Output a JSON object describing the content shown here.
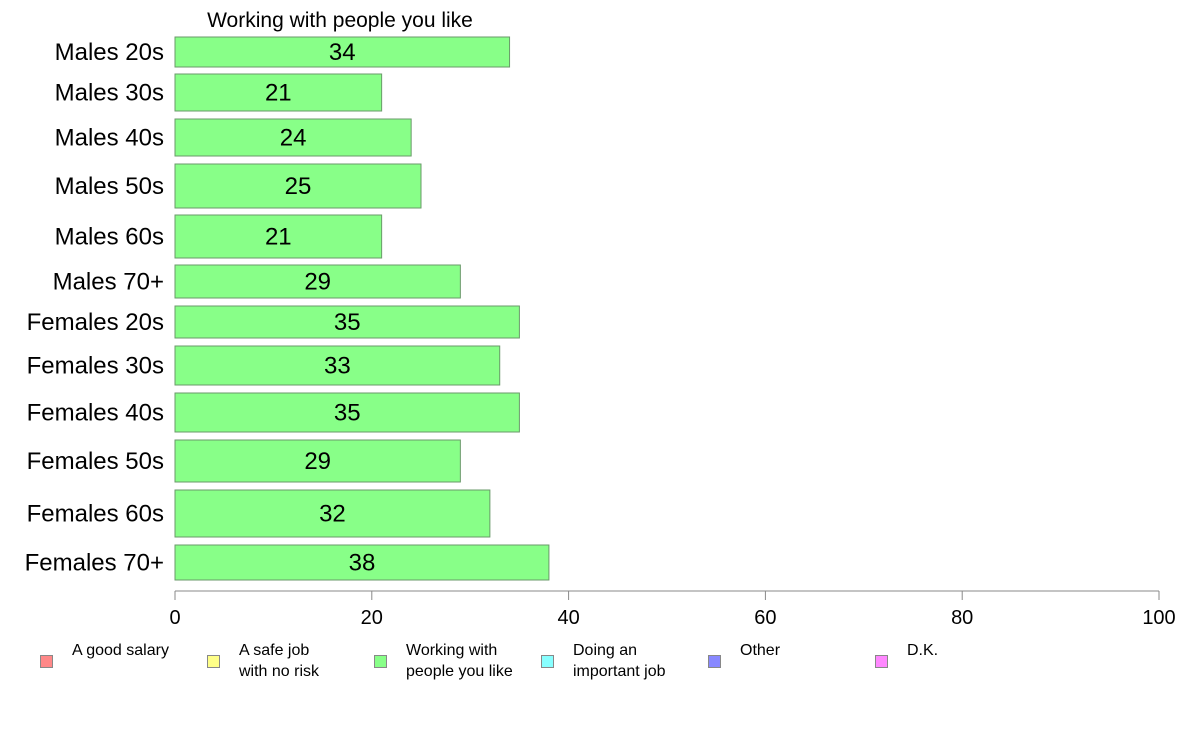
{
  "chart_data": {
    "type": "bar",
    "orientation": "horizontal",
    "title": "Working with people you like",
    "categories": [
      "Males 20s",
      "Males 30s",
      "Males 40s",
      "Males 50s",
      "Males 60s",
      "Males 70+",
      "Females 20s",
      "Females 30s",
      "Females 40s",
      "Females 50s",
      "Females 60s",
      "Females 70+"
    ],
    "series": [
      {
        "name": "Working with people you like",
        "values": [
          34,
          21,
          24,
          25,
          21,
          29,
          35,
          33,
          35,
          29,
          32,
          38
        ],
        "color": "#88ff88"
      }
    ],
    "data_labels": [
      "34",
      "21",
      "24",
      "25",
      "21",
      "29",
      "35",
      "33",
      "35",
      "29",
      "32",
      "38"
    ],
    "xlim": [
      0,
      100
    ],
    "xticks": [
      "0",
      "20",
      "40",
      "60",
      "80",
      "100"
    ],
    "xlabel": "",
    "ylabel": "",
    "grid": false,
    "legend_position": "bottom"
  },
  "legend": {
    "items": [
      {
        "label": "A good salary",
        "color": "#ff8888"
      },
      {
        "label": "A safe job\nwith no risk",
        "color": "#ffff88"
      },
      {
        "label": "Working with\npeople you like",
        "color": "#88ff88"
      },
      {
        "label": "Doing an\nimportant job",
        "color": "#88ffff"
      },
      {
        "label": "Other",
        "color": "#8888ff"
      },
      {
        "label": "D.K.",
        "color": "#ff88ff"
      }
    ]
  }
}
